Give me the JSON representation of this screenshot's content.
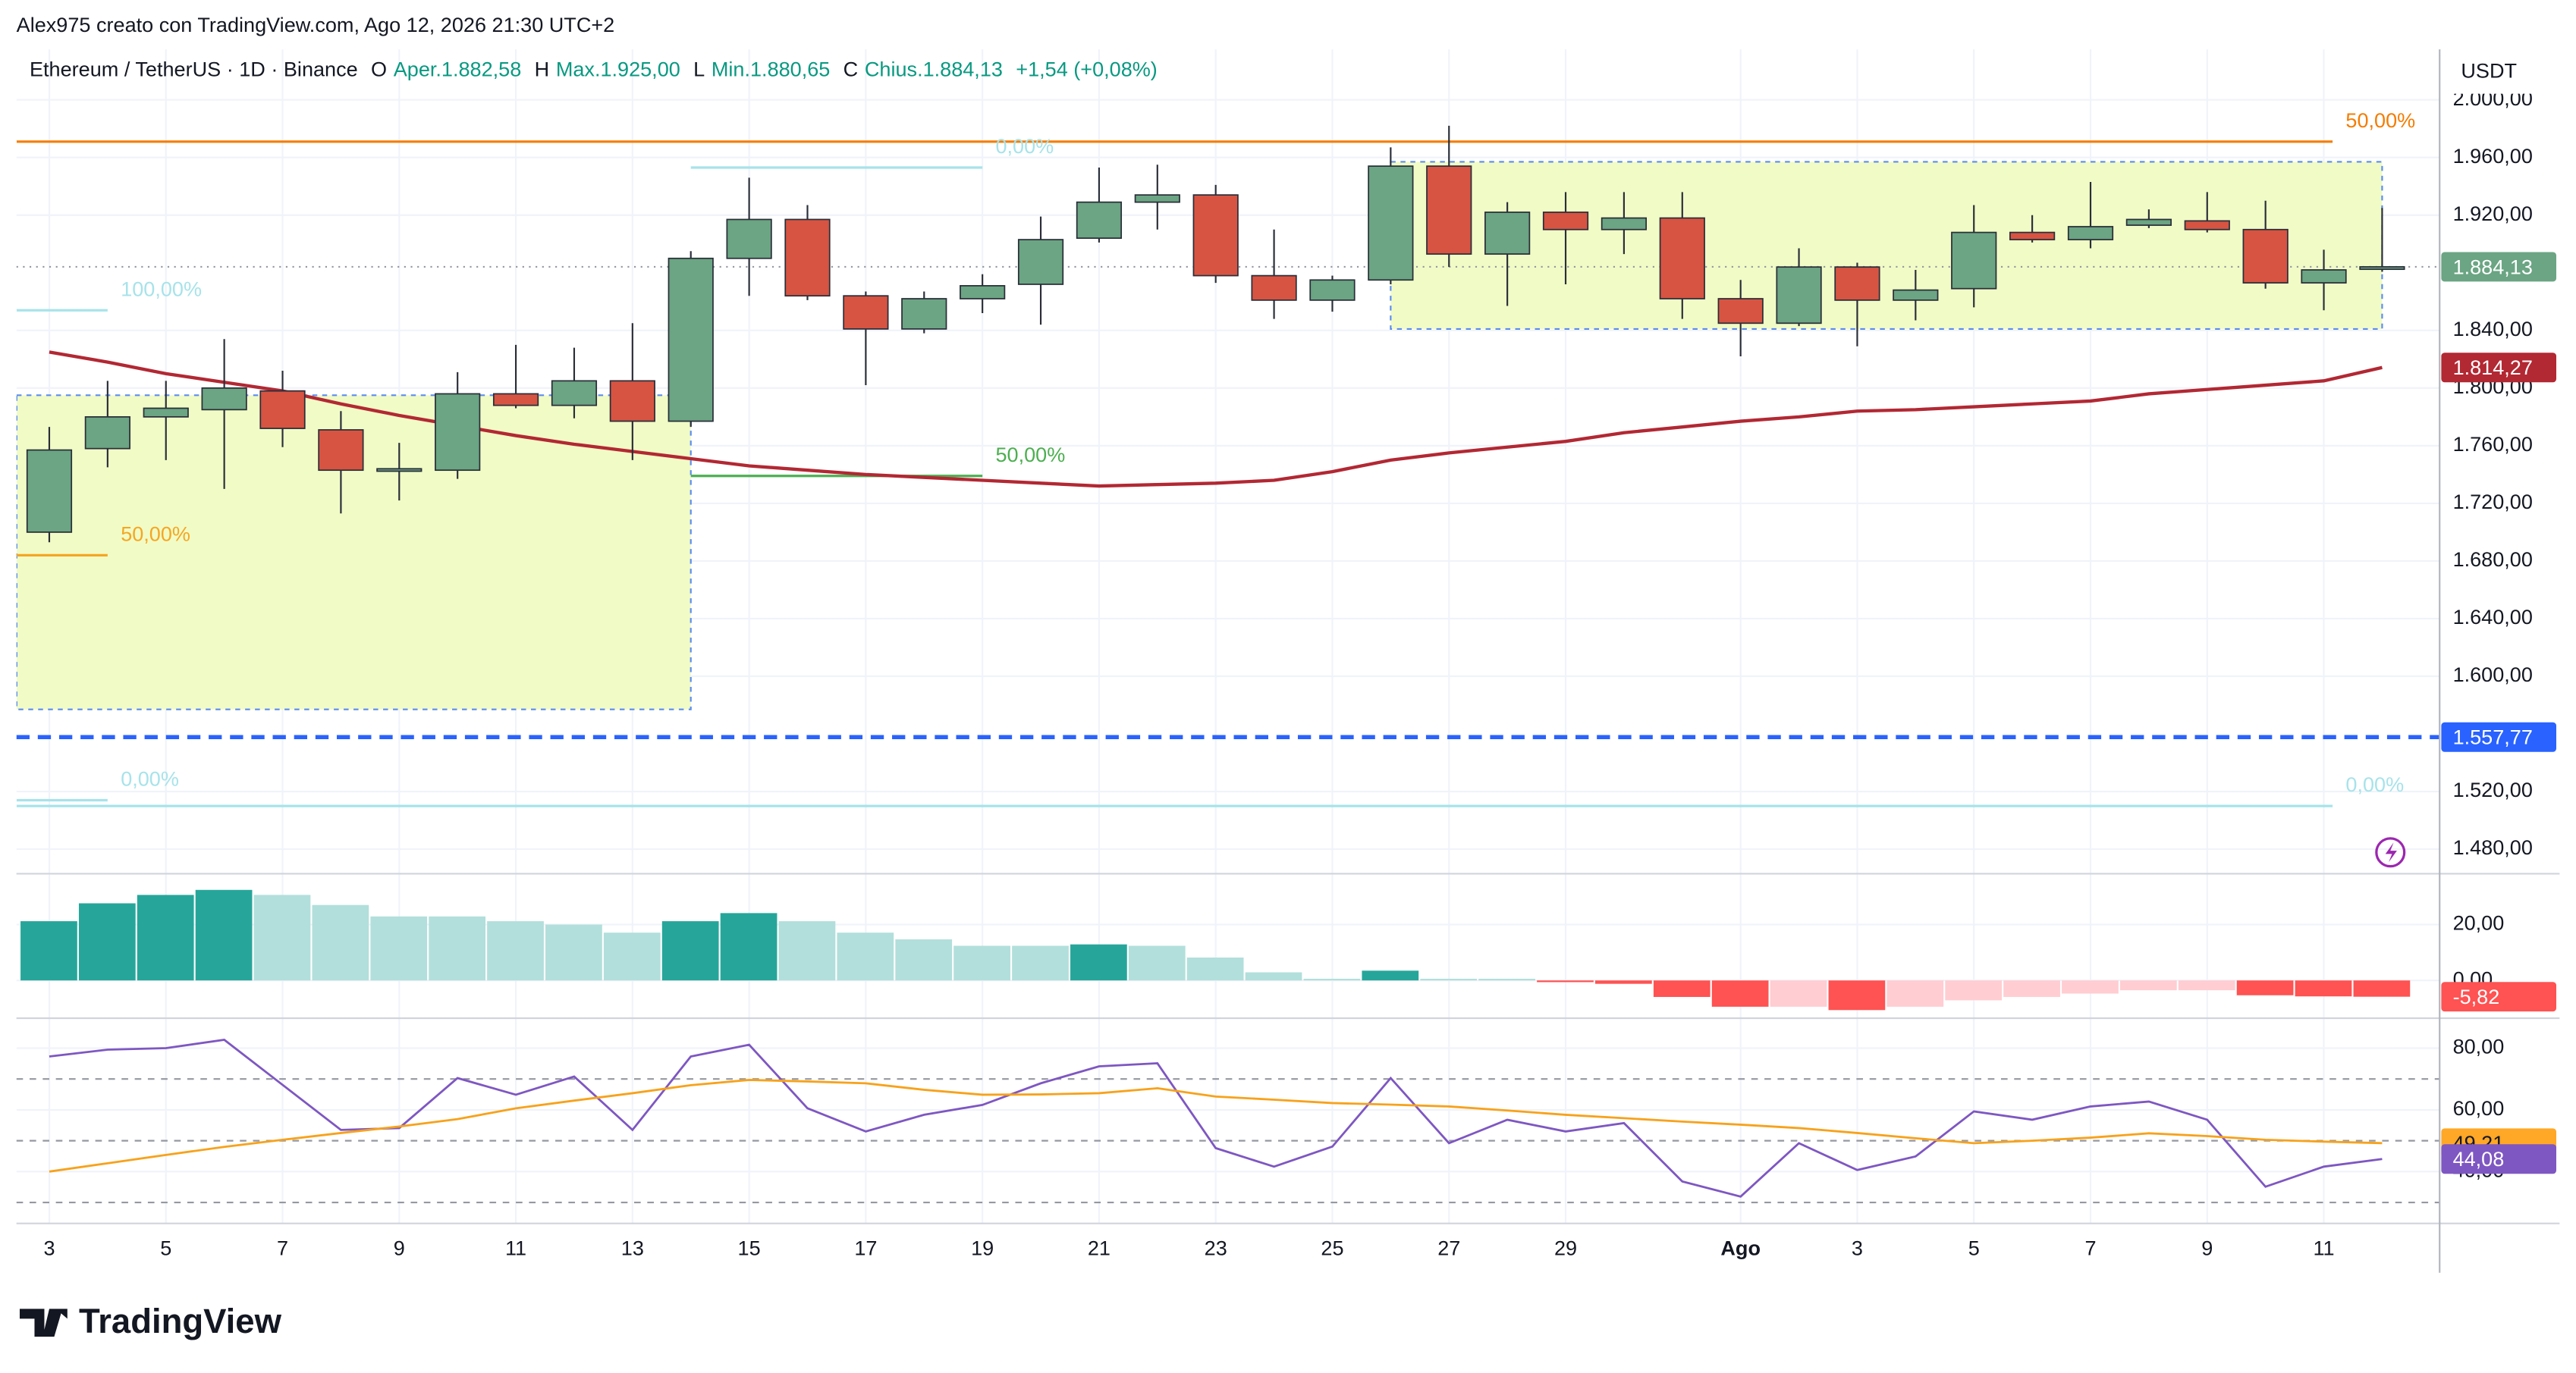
{
  "header": {
    "attribution": "Alex975 creato con TradingView.com, Ago 12, 2026 21:30 UTC+2",
    "symbol": "Ethereum / TetherUS · 1D · Binance",
    "ohlc": [
      {
        "key": "O",
        "value": "Aper.1.882,58"
      },
      {
        "key": "H",
        "value": "Max.1.925,00"
      },
      {
        "key": "L",
        "value": "Min.1.880,65"
      },
      {
        "key": "C",
        "value": "Chius.1.884,13"
      }
    ],
    "change": "+1,54 (+0,08%)",
    "currency": "USDT"
  },
  "footer": {
    "logo": "TradingView"
  },
  "chart_data": [
    {
      "type": "candlestick",
      "categories": [
        "3",
        null,
        "5",
        null,
        "7",
        null,
        "9",
        null,
        "11",
        null,
        "13",
        null,
        "15",
        null,
        "17",
        null,
        "19",
        null,
        "21",
        null,
        "23",
        null,
        "25",
        null,
        "27",
        null,
        "29",
        null,
        null,
        "Ago",
        null,
        "3",
        null,
        "5",
        null,
        "7",
        null,
        "9",
        null,
        "11",
        null
      ],
      "open": [
        1700,
        1758,
        1780,
        1785,
        1798,
        1771,
        1743,
        1743,
        1796,
        1788,
        1805,
        1777,
        1890,
        1917,
        1864,
        1841,
        1862,
        1872,
        1904,
        1929,
        1934,
        1878,
        1861,
        1875,
        1954,
        1893,
        1922,
        1910,
        1918,
        1862,
        1845,
        1884,
        1861,
        1869,
        1908,
        1903,
        1913,
        1916,
        1910,
        1873,
        1882.58
      ],
      "high": [
        1773,
        1805,
        1805,
        1834,
        1812,
        1784,
        1762,
        1811,
        1830,
        1828,
        1845,
        1895,
        1946,
        1927,
        1867,
        1867,
        1879,
        1919,
        1953,
        1955,
        1941,
        1910,
        1878,
        1967,
        1982,
        1929,
        1936,
        1936,
        1936,
        1875,
        1897,
        1887,
        1882,
        1927,
        1920,
        1943,
        1924,
        1936,
        1930,
        1896,
        1925
      ],
      "low": [
        1693,
        1745,
        1750,
        1730,
        1759,
        1713,
        1722,
        1737,
        1786,
        1779,
        1750,
        1773,
        1864,
        1861,
        1802,
        1838,
        1852,
        1844,
        1901,
        1910,
        1873,
        1848,
        1853,
        1872,
        1884,
        1857,
        1872,
        1893,
        1848,
        1822,
        1843,
        1829,
        1847,
        1856,
        1901,
        1897,
        1911,
        1908,
        1869,
        1854,
        1880.65
      ],
      "close": [
        1757,
        1780,
        1786,
        1800,
        1772,
        1743,
        1744,
        1796,
        1788,
        1805,
        1777,
        1890,
        1917,
        1864,
        1841,
        1862,
        1871,
        1903,
        1929,
        1934,
        1878,
        1861,
        1875,
        1954,
        1893,
        1922,
        1910,
        1918,
        1862,
        1845,
        1884,
        1861,
        1868,
        1908,
        1903,
        1912,
        1917,
        1910,
        1873,
        1882,
        1884.13
      ],
      "up_color": "#6ba583",
      "down_color": "#d75442",
      "ma": {
        "color": "#b22833",
        "values": [
          1825,
          1818,
          1810,
          1804,
          1798,
          1789,
          1781,
          1774,
          1767,
          1761,
          1756,
          1751,
          1746,
          1743,
          1740,
          1738,
          1736,
          1734,
          1732,
          1733,
          1734,
          1736,
          1742,
          1750,
          1755,
          1759,
          1763,
          1769,
          1773,
          1777,
          1780,
          1784,
          1785,
          1787,
          1789,
          1791,
          1796,
          1799,
          1802,
          1805,
          1814.27
        ]
      },
      "ylim": [
        1463,
        2035
      ],
      "yticks": [
        {
          "value": 2000,
          "label": "2.000,00"
        },
        {
          "value": 1960,
          "label": "1.960,00"
        },
        {
          "value": 1920,
          "label": "1.920,00"
        },
        {
          "value": 1840,
          "label": "1.840,00"
        },
        {
          "value": 1800,
          "label": "1.800,00"
        },
        {
          "value": 1760,
          "label": "1.760,00"
        },
        {
          "value": 1720,
          "label": "1.720,00"
        },
        {
          "value": 1680,
          "label": "1.680,00"
        },
        {
          "value": 1640,
          "label": "1.640,00"
        },
        {
          "value": 1600,
          "label": "1.600,00"
        },
        {
          "value": 1520,
          "label": "1.520,00"
        },
        {
          "value": 1480,
          "label": "1.480,00"
        }
      ],
      "grid": true,
      "boxes": [
        {
          "x0": -0.56,
          "x1": 11,
          "y0": 1577,
          "y1": 1795
        },
        {
          "x0": 23,
          "x1": 40,
          "y0": 1841,
          "y1": 1957
        }
      ],
      "levels": [
        {
          "value": 1971,
          "label": "50,00%",
          "x0": -0.56,
          "x1": 39.15,
          "color": "#f57c00"
        },
        {
          "value": 1953,
          "label": "0,00%",
          "x0": 11,
          "x1": 16,
          "color": "#a7e3ea"
        },
        {
          "value": 1854,
          "label": "100,00%",
          "x0": -0.56,
          "x1": 1,
          "color": "#a7e3ea"
        },
        {
          "value": 1739,
          "label": "50,00%",
          "x0": 11,
          "x1": 16,
          "color": "#4caf50"
        },
        {
          "value": 1684,
          "label": "50,00%",
          "x0": -0.56,
          "x1": 1,
          "color": "#f5a623"
        },
        {
          "value": 1514,
          "label": "0,00%",
          "x0": -0.56,
          "x1": 1,
          "color": "#a7e3ea"
        },
        {
          "value": 1510,
          "label": "0,00%",
          "x0": -0.56,
          "x1": 39.15,
          "color": "#a7e3ea"
        }
      ],
      "badges": [
        {
          "value": 1884.13,
          "label": "1.884,13",
          "color": "#6ba583",
          "text_color": "#ffffff",
          "line": "dotted"
        },
        {
          "value": 1814.27,
          "label": "1.814,27",
          "color": "#b22833",
          "text_color": "#ffffff"
        },
        {
          "value": 1557.77,
          "label": "1.557,77",
          "color": "#2962ff",
          "text_color": "#ffffff",
          "line": "dashed"
        }
      ]
    },
    {
      "type": "bar",
      "values": [
        21.2,
        27.6,
        30.6,
        32.4,
        30.6,
        27,
        22.9,
        22.9,
        21.2,
        20,
        17.1,
        21.2,
        24.1,
        21.2,
        17.1,
        14.7,
        12.4,
        12.4,
        12.9,
        12.4,
        8.2,
        2.9,
        0.6,
        3.5,
        0.6,
        0.6,
        -0.6,
        -1.2,
        -5.9,
        -9.4,
        -9.4,
        -10.6,
        -9.4,
        -7.1,
        -5.9,
        -4.7,
        -3.5,
        -3.5,
        -5.3,
        -5.7,
        -5.82
      ],
      "colors": {
        "up_strong": "#26a69a",
        "up_weak": "#b2dfdb",
        "down_strong": "#ff5252",
        "down_weak": "#ffcdd2"
      },
      "ylim": [
        -13.5,
        38.2
      ],
      "yticks": [
        {
          "value": 20,
          "label": "20,00"
        },
        {
          "value": 0,
          "label": "0,00"
        }
      ],
      "badges": [
        {
          "value": -5.82,
          "label": "-5,82",
          "color": "#ff5252",
          "text_color": "#ffffff"
        }
      ]
    },
    {
      "type": "line",
      "series": [
        {
          "color": "#7e57c2",
          "values": [
            77.3,
            79.5,
            80,
            82.7,
            68.1,
            53.5,
            54.1,
            70.3,
            64.9,
            70.8,
            53.5,
            77.3,
            81.1,
            60.5,
            53,
            58.4,
            61.6,
            68.6,
            74.1,
            75.1,
            47.6,
            41.6,
            48.1,
            70.3,
            49.2,
            56.8,
            53,
            55.7,
            36.8,
            31.9,
            49.2,
            40.5,
            44.9,
            59.5,
            56.8,
            61.1,
            62.7,
            56.8,
            35.1,
            41.6,
            44.08
          ]
        },
        {
          "color": "#f7a21b",
          "values": [
            40,
            42.7,
            45.4,
            48,
            50.3,
            52.5,
            54.6,
            57,
            60.5,
            63,
            65.4,
            68,
            69.7,
            69.2,
            68.6,
            66.5,
            64.9,
            65,
            65.4,
            67,
            64.3,
            63.3,
            62.2,
            61.7,
            61.1,
            59.8,
            58.4,
            57.3,
            56.2,
            55.2,
            54.1,
            52.5,
            50.8,
            49.2,
            50,
            51,
            52.4,
            51.5,
            50.3,
            49.7,
            49.21
          ]
        }
      ],
      "ylim": [
        23.2,
        89.7
      ],
      "yticks": [
        {
          "value": 80,
          "label": "80,00"
        },
        {
          "value": 60,
          "label": "60,00"
        },
        {
          "value": 40,
          "label": "40,00"
        }
      ],
      "bands": [
        70,
        50,
        30
      ],
      "badges": [
        {
          "value": 49.21,
          "label": "49,21",
          "color": "#ffa726",
          "text_color": "#131722"
        },
        {
          "value": 44.08,
          "label": "44,08",
          "color": "#7e57c2",
          "text_color": "#ffffff"
        }
      ]
    }
  ]
}
